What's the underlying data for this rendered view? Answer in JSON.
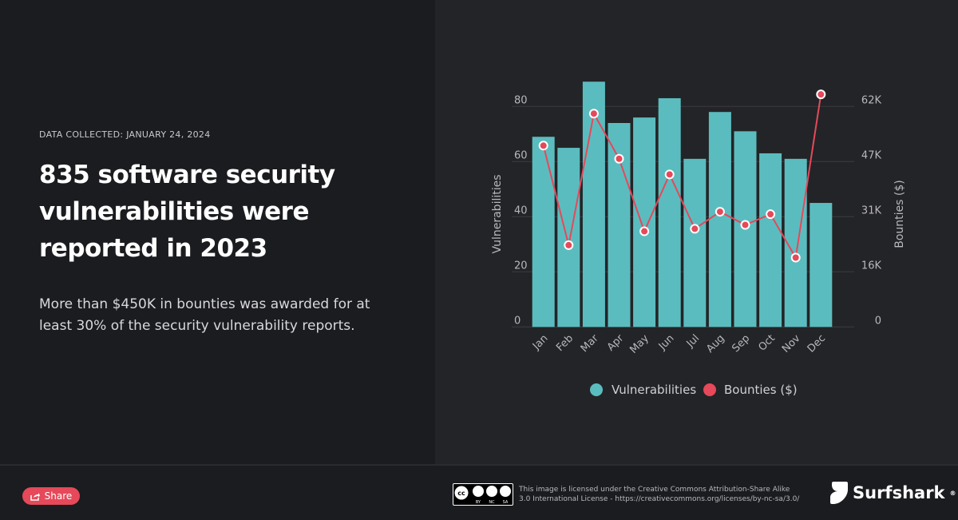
{
  "header": {
    "date_collected": "DATA COLLECTED: JANUARY 24, 2024",
    "title": "835 software security vulnerabilities were reported in 2023",
    "subtitle": "More than $450K in bounties was awarded for at least 30% of the security vulnerability reports."
  },
  "footer": {
    "share_label": "Share",
    "license_text_1": "This image is licensed under the Creative Commons Attribution-Share Alike",
    "license_text_2": "3.0 International License - https://creativecommons.org/licenses/by-nc-sa/3.0/",
    "brand": "Surfshark",
    "cc_badge": "cc BY NC SA"
  },
  "colors": {
    "bar": "#5bbcbf",
    "line": "#e5495a",
    "accent": "#e5495a"
  },
  "chart_data": {
    "type": "bar+line",
    "categories": [
      "Jan",
      "Feb",
      "Mar",
      "Apr",
      "May",
      "Jun",
      "Jul",
      "Aug",
      "Sep",
      "Oct",
      "Nov",
      "Dec"
    ],
    "series": [
      {
        "name": "Vulnerabilities",
        "type": "bar",
        "axis": "left",
        "values": [
          69,
          65,
          89,
          74,
          76,
          83,
          61,
          78,
          71,
          63,
          61,
          45
        ]
      },
      {
        "name": "Bounties ($)",
        "type": "line",
        "axis": "right",
        "values": [
          51000,
          23000,
          60000,
          47300,
          26900,
          42900,
          27600,
          32400,
          28700,
          31700,
          19500,
          65400
        ]
      }
    ],
    "ylabel": "Vulnerabilities",
    "ylabel_right": "Bounties ($)",
    "ylim": [
      0,
      80
    ],
    "ylim_right": [
      0,
      62000
    ],
    "yticks": [
      "0",
      "20",
      "40",
      "60",
      "80"
    ],
    "yticks_right": [
      "0",
      "16K",
      "31K",
      "47K",
      "62K"
    ],
    "grid": true,
    "legend": "bottom"
  }
}
